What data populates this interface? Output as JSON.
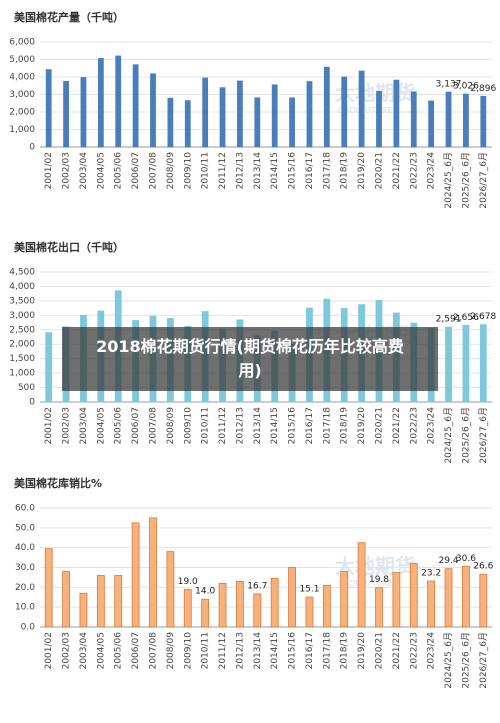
{
  "overlay_title": "2018棉花期货行情(期货棉花历年比较高费用)",
  "watermark": {
    "name": "大地期货",
    "sub": "DADI FUTURES"
  },
  "chart_data": [
    {
      "type": "bar",
      "title": "美国棉花产量（千吨）",
      "color": "#4a7ebb",
      "stroke": "#4a7ebb",
      "grid": true,
      "categories": [
        "2001/02",
        "2002/03",
        "2003/04",
        "2004/05",
        "2005/06",
        "2006/07",
        "2007/08",
        "2008/09",
        "2009/10",
        "2010/11",
        "2011/12",
        "2012/13",
        "2013/14",
        "2014/15",
        "2015/16",
        "2016/17",
        "2017/18",
        "2018/19",
        "2019/20",
        "2020/21",
        "2021/22",
        "2022/23",
        "2023/24",
        "2024/25_6月",
        "2025/26_6月",
        "2026/27_6月"
      ],
      "values": [
        4420,
        3750,
        3970,
        5060,
        5200,
        4700,
        4180,
        2790,
        2650,
        3940,
        3390,
        3770,
        2810,
        3550,
        2810,
        3740,
        4560,
        4000,
        4340,
        3180,
        3820,
        3150,
        2630,
        3137,
        3026,
        2896
      ],
      "value_labels": [
        null,
        null,
        null,
        null,
        null,
        null,
        null,
        null,
        null,
        null,
        null,
        null,
        null,
        null,
        null,
        null,
        null,
        null,
        null,
        null,
        null,
        null,
        null,
        "3,137",
        "3,026",
        "2,896"
      ],
      "ylim": [
        0,
        6000
      ],
      "yticks": [
        0,
        {
          "value": 1000,
          "label": "1,000"
        },
        {
          "value": 2000,
          "label": "2,000"
        },
        {
          "value": 3000,
          "label": "3,000"
        },
        {
          "value": 4000,
          "label": "4,000"
        },
        {
          "value": 5000,
          "label": "5,000"
        },
        {
          "value": 6000,
          "label": "6,000"
        }
      ]
    },
    {
      "type": "bar",
      "title": "美国棉花出口（千吨）",
      "color": "#7ec8dc",
      "stroke": "#7ec8dc",
      "grid": true,
      "categories": [
        "2001/02",
        "2002/03",
        "2003/04",
        "2004/05",
        "2005/06",
        "2006/07",
        "2007/08",
        "2008/09",
        "2009/10",
        "2010/11",
        "2011/12",
        "2012/13",
        "2013/14",
        "2014/15",
        "2015/16",
        "2016/17",
        "2017/18",
        "2018/19",
        "2019/20",
        "2020/21",
        "2021/22",
        "2022/23",
        "2023/24",
        "2024/25_6月",
        "2025/26_6月",
        "2026/27_6月"
      ],
      "values": [
        2400,
        2600,
        3000,
        3150,
        3850,
        2820,
        2970,
        2890,
        2620,
        3130,
        2530,
        2840,
        2290,
        2450,
        1990,
        3250,
        3560,
        3240,
        3370,
        3520,
        3080,
        2730,
        2550,
        2591,
        2656,
        2678
      ],
      "value_labels": [
        null,
        null,
        null,
        null,
        null,
        null,
        null,
        null,
        null,
        null,
        null,
        null,
        null,
        null,
        null,
        null,
        null,
        null,
        null,
        null,
        null,
        null,
        null,
        "2,591",
        "2,656",
        "2,678"
      ],
      "ylim": [
        0,
        4500
      ],
      "yticks": [
        0,
        500,
        {
          "value": 1000,
          "label": "1,000"
        },
        {
          "value": 1500,
          "label": "1,500"
        },
        {
          "value": 2000,
          "label": "2,000"
        },
        {
          "value": 2500,
          "label": "2,500"
        },
        {
          "value": 3000,
          "label": "3,000"
        },
        {
          "value": 3500,
          "label": "3,500"
        },
        {
          "value": 4000,
          "label": "4,000"
        },
        {
          "value": 4500,
          "label": "4,500"
        }
      ]
    },
    {
      "type": "bar",
      "title": "美国棉花库销比%",
      "color": "#f7b27c",
      "stroke": "#d9783a",
      "grid": true,
      "categories": [
        "2001/02",
        "2002/03",
        "2003/04",
        "2004/05",
        "2005/06",
        "2006/07",
        "2007/08",
        "2008/09",
        "2009/10",
        "2010/11",
        "2011/12",
        "2012/13",
        "2013/14",
        "2014/15",
        "2015/16",
        "2016/17",
        "2017/18",
        "2018/19",
        "2019/20",
        "2020/21",
        "2021/22",
        "2022/23",
        "2023/24",
        "2024/25_6月",
        "2025/26_6月",
        "2026/27_6月"
      ],
      "values": [
        39.5,
        28.0,
        17.0,
        26.0,
        26.0,
        52.5,
        55.0,
        38.0,
        19.0,
        14.0,
        22.0,
        23.0,
        16.7,
        24.5,
        30.0,
        15.1,
        21.0,
        28.0,
        42.5,
        19.8,
        27.5,
        32.0,
        23.2,
        29.4,
        30.6,
        26.6
      ],
      "value_labels": [
        null,
        null,
        null,
        null,
        null,
        null,
        null,
        null,
        "19.0",
        "14.0",
        null,
        null,
        "16.7",
        null,
        null,
        "15.1",
        null,
        null,
        null,
        "19.8",
        null,
        null,
        "23.2",
        "29.4",
        "30.6",
        "26.6"
      ],
      "ylim": [
        0,
        60
      ],
      "yticks": [
        {
          "value": 0,
          "label": "0.0"
        },
        {
          "value": 10,
          "label": "10.0"
        },
        {
          "value": 20,
          "label": "20.0"
        },
        {
          "value": 30,
          "label": "30.0"
        },
        {
          "value": 40,
          "label": "40.0"
        },
        {
          "value": 50,
          "label": "50.0"
        },
        {
          "value": 60,
          "label": "60.0"
        }
      ]
    }
  ]
}
